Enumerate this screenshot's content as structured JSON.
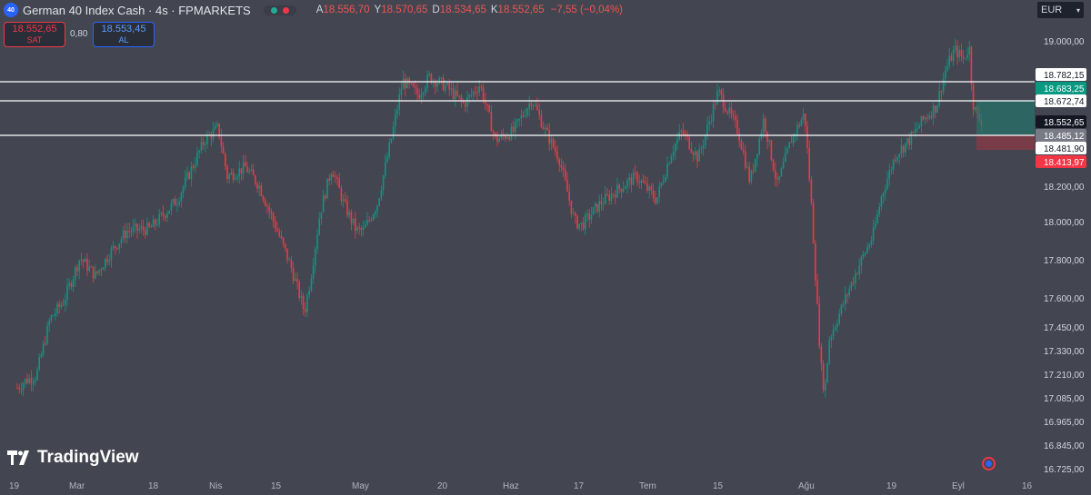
{
  "header": {
    "symbol_badge": "40",
    "title": "German 40 Index Cash · 4s · FPMARKETS",
    "ohlc": [
      {
        "key": "A",
        "value": "18.556,70"
      },
      {
        "key": "Y",
        "value": "18.570,65"
      },
      {
        "key": "D",
        "value": "18.534,65"
      },
      {
        "key": "K",
        "value": "18.552,65"
      }
    ],
    "change": "−7,55 (−0,04%)"
  },
  "trade": {
    "sell_price": "18.552,65",
    "sell_label": "SAT",
    "spread": "0,80",
    "buy_price": "18.553,45",
    "buy_label": "AL"
  },
  "currency": "EUR",
  "logo_text": "TradingView",
  "chart_data": {
    "type": "candlestick",
    "y_axis_ticks": [
      "19.000,00",
      "18.200,00",
      "18.000,00",
      "17.800,00",
      "17.600,00",
      "17.450,00",
      "17.330,00",
      "17.210,00",
      "17.085,00",
      "16.965,00",
      "16.845,00",
      "16.725,00"
    ],
    "x_axis_ticks": [
      "19",
      "Mar",
      "18",
      "Nis",
      "15",
      "May",
      "20",
      "Haz",
      "17",
      "Tem",
      "15",
      "Ağu",
      "19",
      "Eyl",
      "16"
    ],
    "horizontal_lines": [
      {
        "label": "18.782,15",
        "value": 18782.15
      },
      {
        "label": "18.672,74",
        "value": 18672.74
      },
      {
        "label": "18.481,90",
        "value": 18481.9
      }
    ],
    "price_tags": [
      {
        "label": "18.683,25",
        "color": "#089981"
      },
      {
        "label": "18.552,65",
        "color": "#131722"
      },
      {
        "label": "18.485,12",
        "color": "#787b86"
      },
      {
        "label": "18.413,97",
        "color": "#f23645"
      }
    ],
    "up_color": "#089981",
    "down_color": "#f23645",
    "price_path": [
      [
        19,
        17080
      ],
      [
        28,
        17120
      ],
      [
        40,
        17150
      ],
      [
        55,
        17460
      ],
      [
        70,
        17560
      ],
      [
        88,
        17800
      ],
      [
        105,
        17700
      ],
      [
        120,
        17820
      ],
      [
        140,
        17950
      ],
      [
        165,
        17960
      ],
      [
        195,
        18120
      ],
      [
        225,
        18450
      ],
      [
        240,
        18520
      ],
      [
        250,
        18250
      ],
      [
        270,
        18300
      ],
      [
        285,
        18200
      ],
      [
        305,
        17950
      ],
      [
        320,
        17750
      ],
      [
        335,
        17500
      ],
      [
        342,
        17700
      ],
      [
        352,
        18050
      ],
      [
        365,
        18300
      ],
      [
        378,
        18100
      ],
      [
        392,
        17950
      ],
      [
        400,
        17950
      ],
      [
        415,
        18100
      ],
      [
        430,
        18450
      ],
      [
        443,
        18780
      ],
      [
        460,
        18700
      ],
      [
        472,
        18800
      ],
      [
        490,
        18750
      ],
      [
        510,
        18650
      ],
      [
        528,
        18760
      ],
      [
        545,
        18450
      ],
      [
        565,
        18500
      ],
      [
        585,
        18680
      ],
      [
        600,
        18500
      ],
      [
        615,
        18350
      ],
      [
        632,
        18000
      ],
      [
        640,
        17980
      ],
      [
        660,
        18100
      ],
      [
        680,
        18180
      ],
      [
        700,
        18250
      ],
      [
        722,
        18120
      ],
      [
        738,
        18380
      ],
      [
        750,
        18500
      ],
      [
        768,
        18350
      ],
      [
        790,
        18720
      ],
      [
        800,
        18620
      ],
      [
        812,
        18500
      ],
      [
        825,
        18220
      ],
      [
        840,
        18570
      ],
      [
        855,
        18200
      ],
      [
        870,
        18450
      ],
      [
        885,
        18600
      ],
      [
        893,
        18050
      ],
      [
        898,
        17600
      ],
      [
        903,
        17200
      ],
      [
        907,
        17050
      ],
      [
        912,
        17350
      ],
      [
        920,
        17450
      ],
      [
        935,
        17640
      ],
      [
        945,
        17760
      ],
      [
        960,
        17920
      ],
      [
        970,
        18150
      ],
      [
        985,
        18370
      ],
      [
        1000,
        18450
      ],
      [
        1015,
        18560
      ],
      [
        1030,
        18640
      ],
      [
        1040,
        18840
      ],
      [
        1050,
        18950
      ],
      [
        1060,
        18900
      ],
      [
        1066,
        18970
      ],
      [
        1070,
        18660
      ],
      [
        1075,
        18580
      ],
      [
        1080,
        18550
      ]
    ]
  }
}
